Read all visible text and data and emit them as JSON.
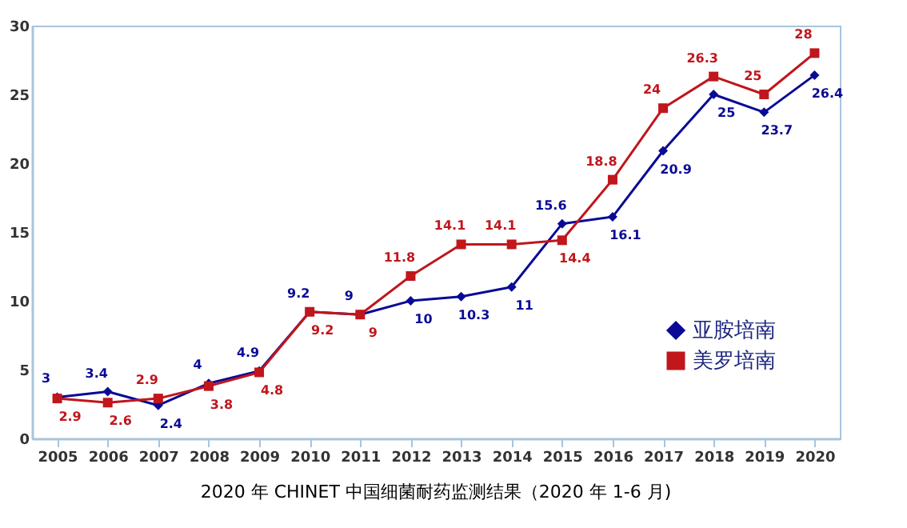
{
  "chart_data": {
    "type": "line",
    "title": "2020 年 CHINET 中国细菌耐药监测结果（2020 年 1-6 月)",
    "categories": [
      "2005",
      "2006",
      "2007",
      "2008",
      "2009",
      "2010",
      "2011",
      "2012",
      "2013",
      "2014",
      "2015",
      "2016",
      "2017",
      "2018",
      "2019",
      "2020"
    ],
    "series": [
      {
        "name": "亚胺培南",
        "color": "#0a0a96",
        "marker": "diamond",
        "values": [
          3,
          3.4,
          2.4,
          4,
          4.9,
          9.2,
          9,
          10,
          10.3,
          11,
          15.6,
          16.1,
          20.9,
          25,
          23.7,
          26.4
        ]
      },
      {
        "name": "美罗培南",
        "color": "#c0161c",
        "marker": "square",
        "values": [
          2.9,
          2.6,
          2.9,
          3.8,
          4.8,
          9.2,
          9,
          11.8,
          14.1,
          14.1,
          14.4,
          18.8,
          24,
          26.3,
          25,
          28
        ]
      }
    ],
    "ylim": [
      0,
      30
    ],
    "yticks": [
      0,
      5,
      10,
      15,
      20,
      25,
      30
    ],
    "grid": false,
    "legend": "bottom right",
    "data_labels": true,
    "line_style": "solid"
  }
}
